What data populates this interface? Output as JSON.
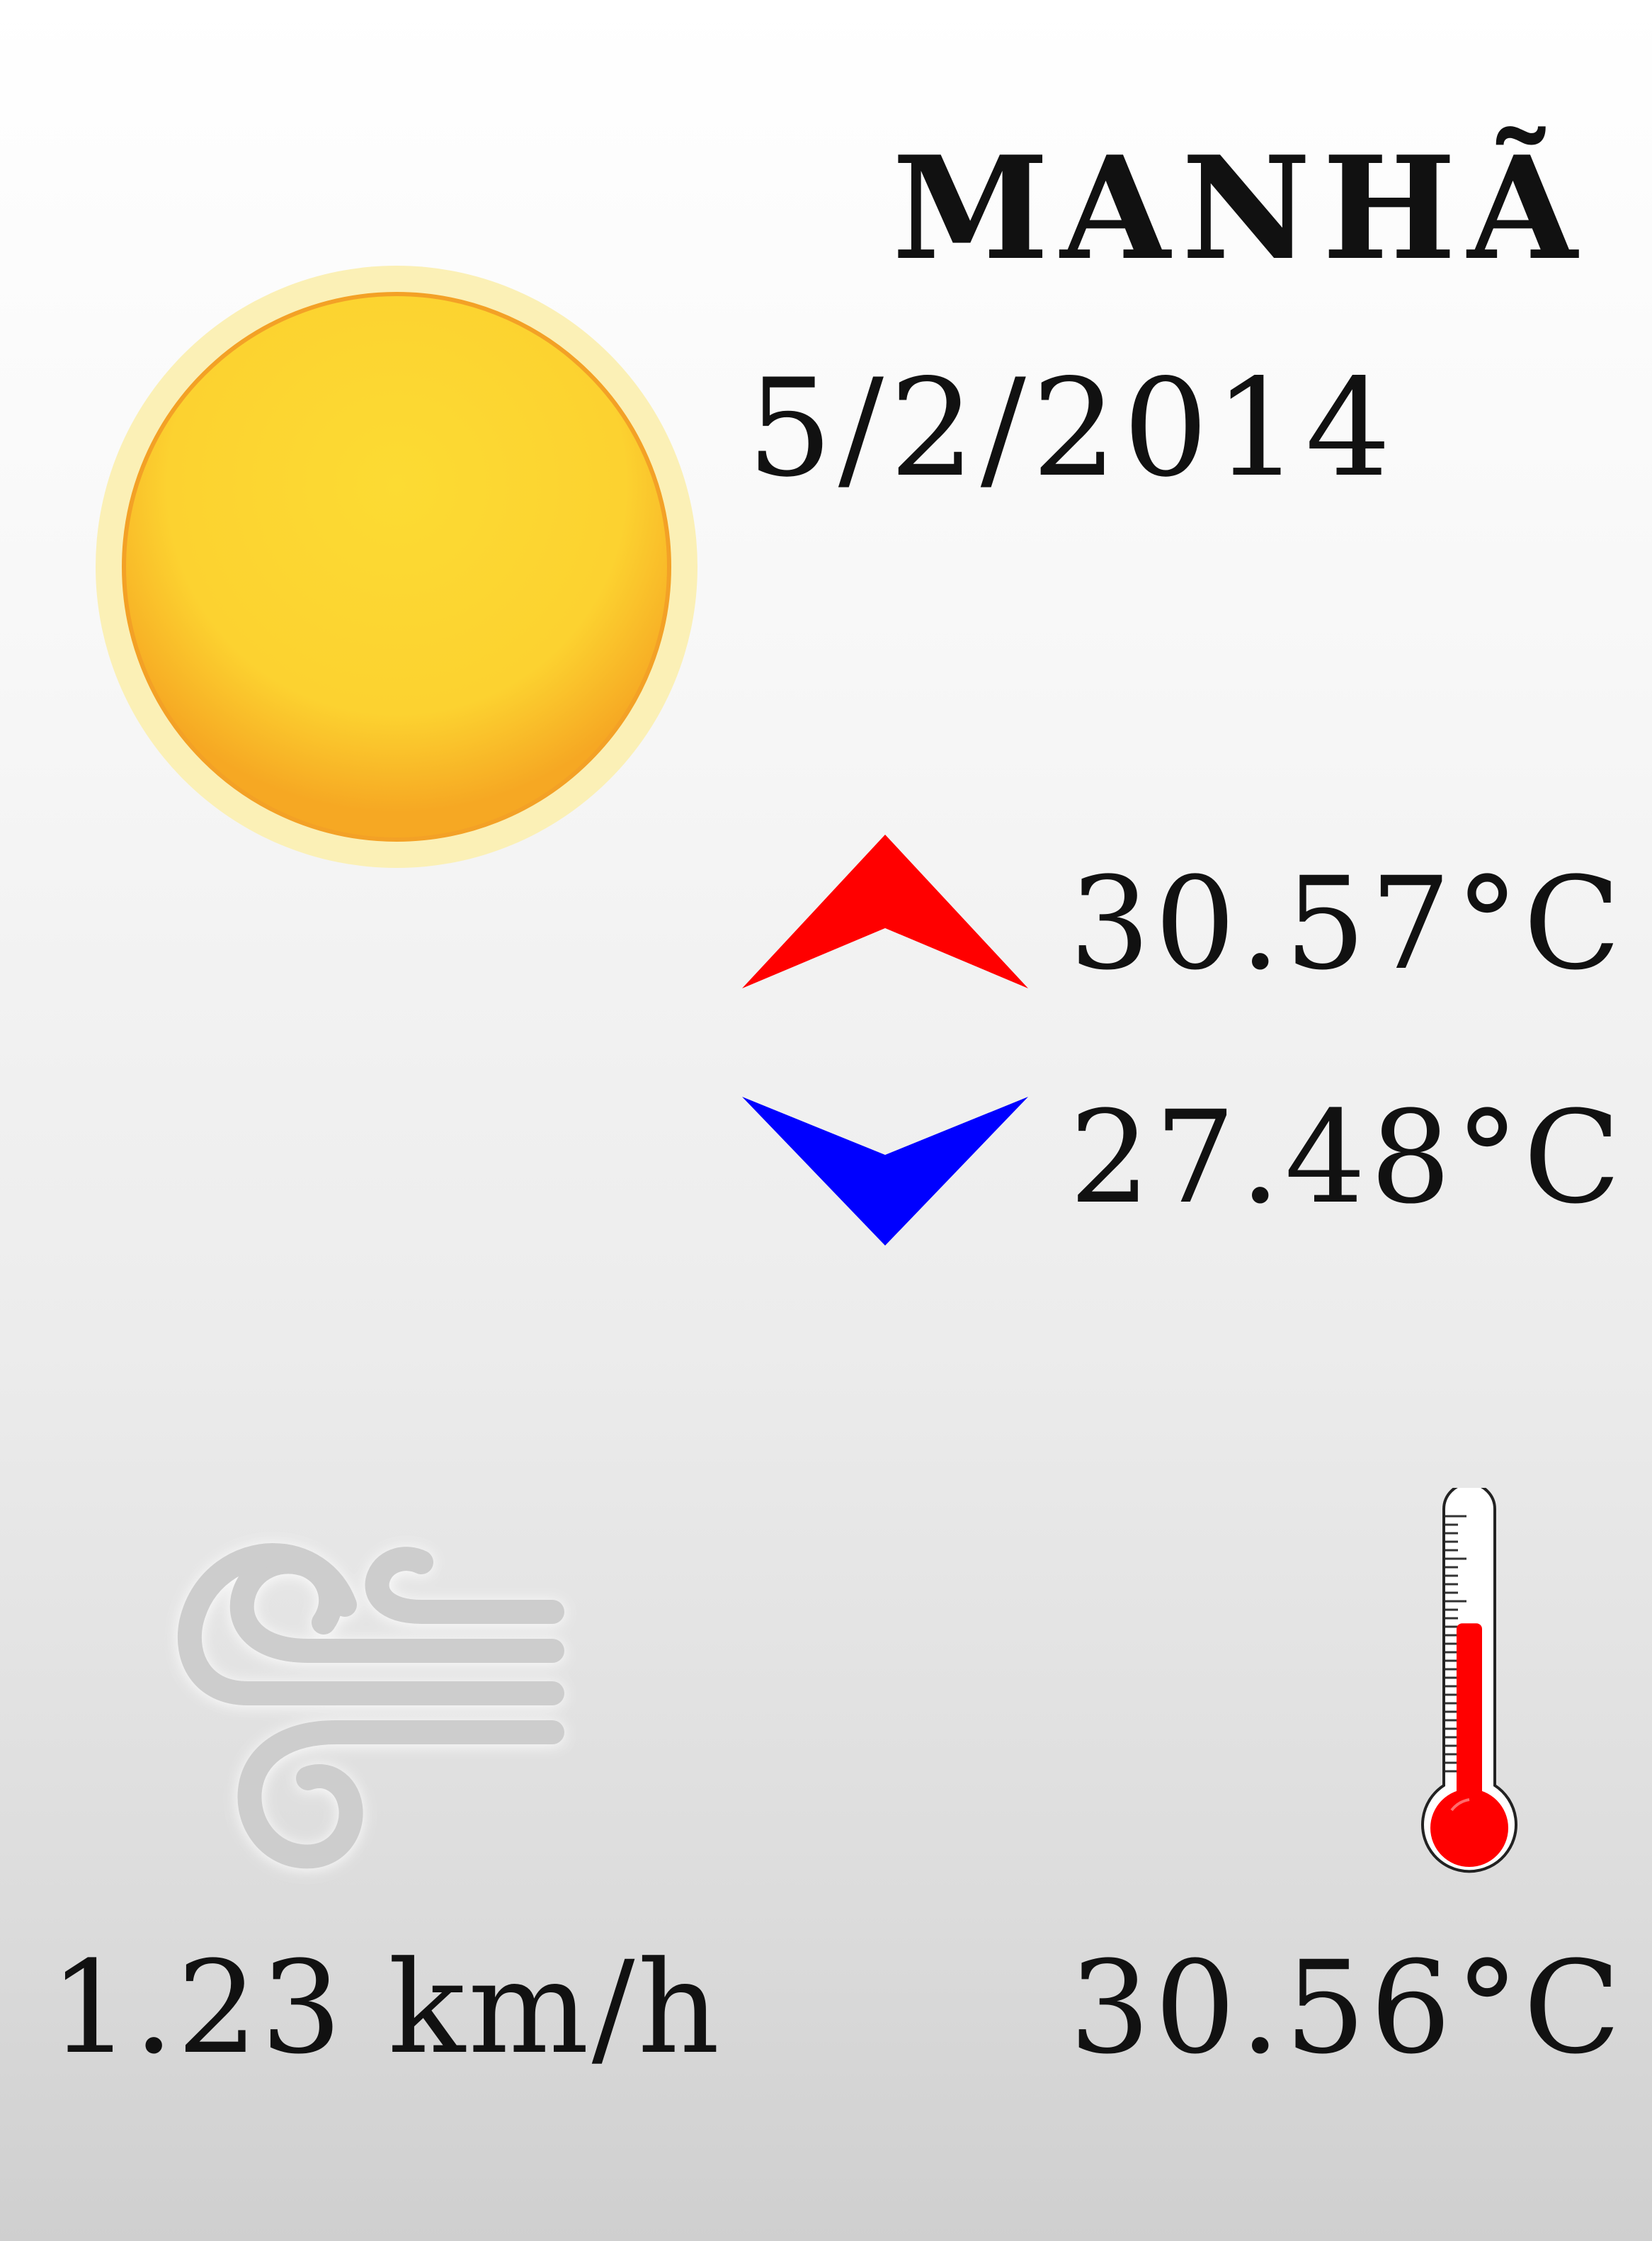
{
  "forecast": {
    "period": "MANHÃ",
    "date": "5/2/2014",
    "condition_icon": "sun-icon",
    "high_temperature": "30.57°C",
    "low_temperature": "27.48°C",
    "wind_speed": "1.23 km/h",
    "current_temperature": "30.56°C",
    "thermometer_level": 0.58
  },
  "colors": {
    "sun_core": "#fcd832",
    "sun_edge": "#f6a823",
    "sun_halo": "#fbf0b6",
    "high_arrow": "#ff0000",
    "low_arrow": "#0000ff",
    "wind_icon": "#cfcfcf",
    "thermometer_fluid": "#ff0000"
  }
}
